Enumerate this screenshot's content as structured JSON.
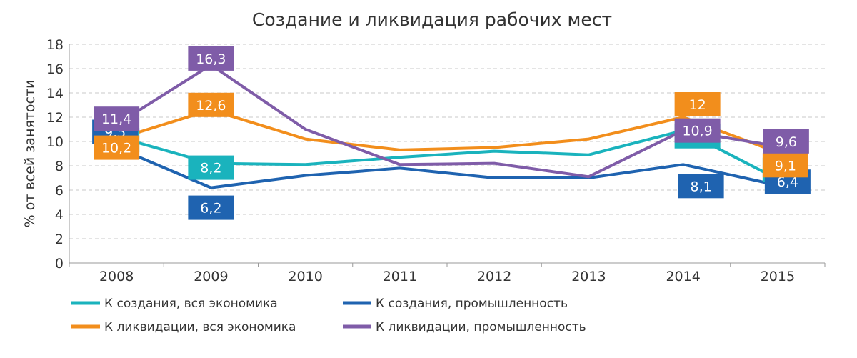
{
  "chart_data": {
    "type": "line",
    "title": "Создание и ликвидация рабочих мест",
    "ylabel": "% от всей занятости",
    "xlabel": "",
    "categories": [
      "2008",
      "2009",
      "2010",
      "2011",
      "2012",
      "2013",
      "2014",
      "2015"
    ],
    "ylim": [
      0,
      18
    ],
    "yticks": [
      "0",
      "2",
      "4",
      "6",
      "8",
      "10",
      "12",
      "14",
      "16",
      "18"
    ],
    "grid": true,
    "legend_position": "bottom",
    "series": [
      {
        "name": "К создания, вся экономика",
        "color": "#1ab3bd",
        "values": [
          10.4,
          8.2,
          8.1,
          8.7,
          9.2,
          8.9,
          10.9,
          6.9
        ],
        "labels": [
          {
            "index": 0,
            "text": "10,4"
          },
          {
            "index": 1,
            "text": "8,2"
          },
          {
            "index": 6,
            "text": "10,9"
          },
          {
            "index": 7,
            "text": "6,9"
          }
        ]
      },
      {
        "name": "К создания, промышленность",
        "color": "#1f63b0",
        "values": [
          9.5,
          6.2,
          7.2,
          7.8,
          7.0,
          7.0,
          8.1,
          6.4
        ],
        "labels": [
          {
            "index": 0,
            "text": "9,5"
          },
          {
            "index": 1,
            "text": "6,2"
          },
          {
            "index": 6,
            "text": "8,1"
          },
          {
            "index": 7,
            "text": "6,4"
          }
        ]
      },
      {
        "name": "К ликвидации, вся экономика",
        "color": "#f28e1c",
        "values": [
          10.2,
          12.6,
          10.2,
          9.3,
          9.5,
          10.2,
          12.0,
          9.1
        ],
        "labels": [
          {
            "index": 0,
            "text": "10,2"
          },
          {
            "index": 1,
            "text": "12,6"
          },
          {
            "index": 6,
            "text": "12"
          },
          {
            "index": 7,
            "text": "9,1"
          }
        ]
      },
      {
        "name": "К ликвидации, промышленность",
        "color": "#7f5ca8",
        "values": [
          11.4,
          16.3,
          11.0,
          8.1,
          8.2,
          7.1,
          10.9,
          9.6
        ],
        "labels": [
          {
            "index": 0,
            "text": "11,4"
          },
          {
            "index": 1,
            "text": "16,3"
          },
          {
            "index": 6,
            "text": "10,9"
          },
          {
            "index": 7,
            "text": "9,6"
          }
        ]
      }
    ]
  }
}
